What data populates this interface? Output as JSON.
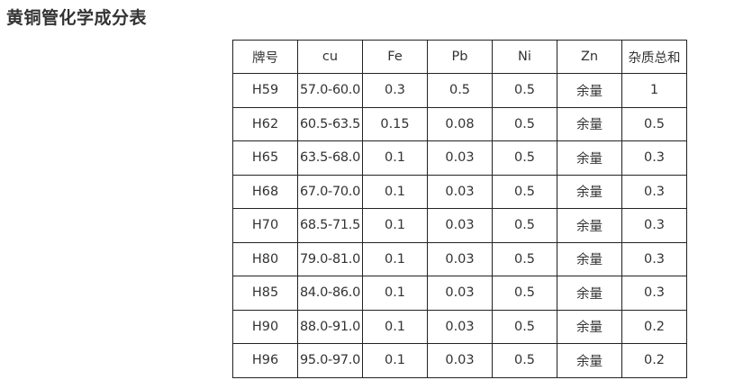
{
  "title": "黄铜管化学成分表",
  "table": {
    "headers": [
      "牌号",
      "cu",
      "Fe",
      "Pb",
      "Ni",
      "Zn",
      "杂质总和"
    ],
    "rows": [
      [
        "H59",
        "57.0-60.0",
        "0.3",
        "0.5",
        "0.5",
        "余量",
        "1"
      ],
      [
        "H62",
        "60.5-63.5",
        "0.15",
        "0.08",
        "0.5",
        "余量",
        "0.5"
      ],
      [
        "H65",
        "63.5-68.0",
        "0.1",
        "0.03",
        "0.5",
        "余量",
        "0.3"
      ],
      [
        "H68",
        "67.0-70.0",
        "0.1",
        "0.03",
        "0.5",
        "余量",
        "0.3"
      ],
      [
        "H70",
        "68.5-71.5",
        "0.1",
        "0.03",
        "0.5",
        "余量",
        "0.3"
      ],
      [
        "H80",
        "79.0-81.0",
        "0.1",
        "0.03",
        "0.5",
        "余量",
        "0.3"
      ],
      [
        "H85",
        "84.0-86.0",
        "0.1",
        "0.03",
        "0.5",
        "余量",
        "0.3"
      ],
      [
        "H90",
        "88.0-91.0",
        "0.1",
        "0.03",
        "0.5",
        "余量",
        "0.2"
      ],
      [
        "H96",
        "95.0-97.0",
        "0.1",
        "0.03",
        "0.5",
        "余量",
        "0.2"
      ]
    ]
  }
}
